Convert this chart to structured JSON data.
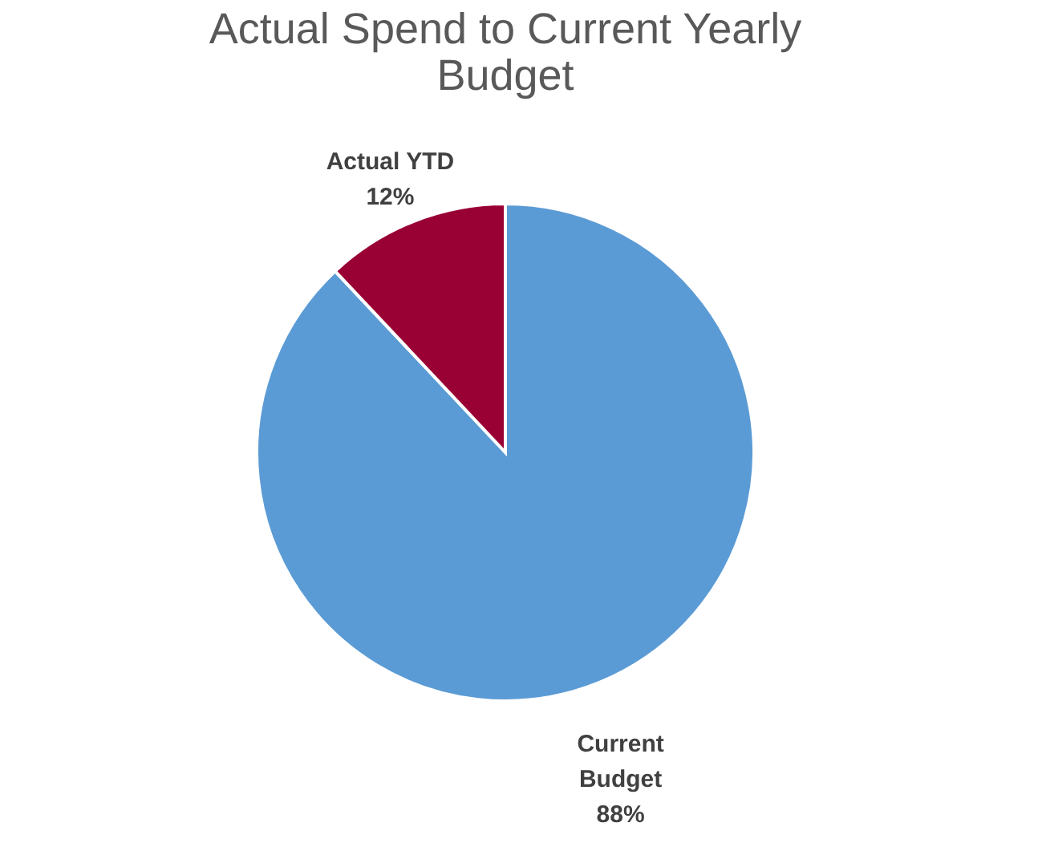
{
  "chart_data": {
    "type": "pie",
    "title": "Actual Spend to Current Yearly Budget",
    "categories": [
      "Current Budget",
      "Actual YTD"
    ],
    "values": [
      88,
      12
    ],
    "colors": [
      "#5b9bd5",
      "#990033"
    ],
    "value_labels": [
      "88%",
      "12%"
    ]
  }
}
